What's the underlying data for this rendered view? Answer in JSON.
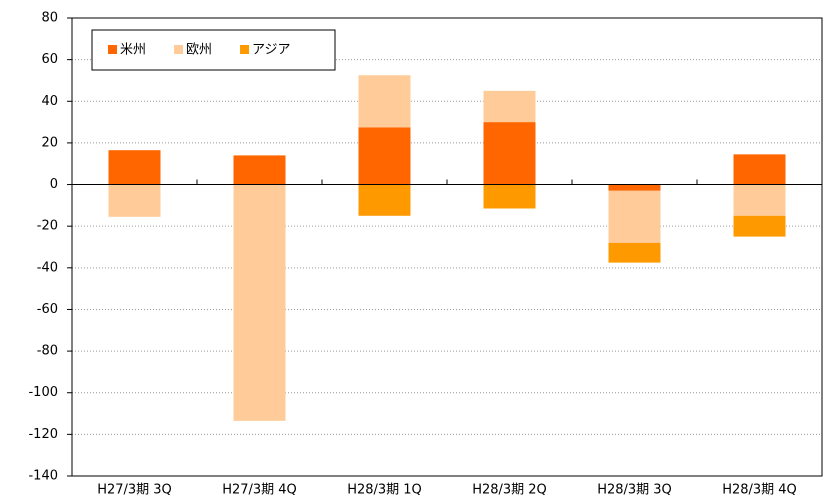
{
  "chart_data": {
    "type": "stacked_bar",
    "categories": [
      "H27/3期 3Q",
      "H27/3期 4Q",
      "H28/3期 1Q",
      "H28/3期 2Q",
      "H28/3期 3Q",
      "H28/3期 4Q"
    ],
    "series": [
      {
        "name": "米州",
        "color": "#ff6600",
        "values": [
          16.5,
          14,
          27.5,
          30,
          -3,
          14.5
        ]
      },
      {
        "name": "欧州",
        "color": "#ffcc99",
        "values": [
          -15.5,
          -113.5,
          25,
          15,
          -25,
          -15
        ]
      },
      {
        "name": "アジア",
        "color": "#ff9900",
        "values": [
          0,
          0,
          -15,
          -11.5,
          -9.5,
          -10
        ]
      }
    ],
    "ylim": [
      -140,
      80
    ],
    "yticks": [
      -140,
      -120,
      -100,
      -80,
      -60,
      -40,
      -20,
      0,
      20,
      40,
      60,
      80
    ],
    "grid": true,
    "legend": "upper left"
  }
}
